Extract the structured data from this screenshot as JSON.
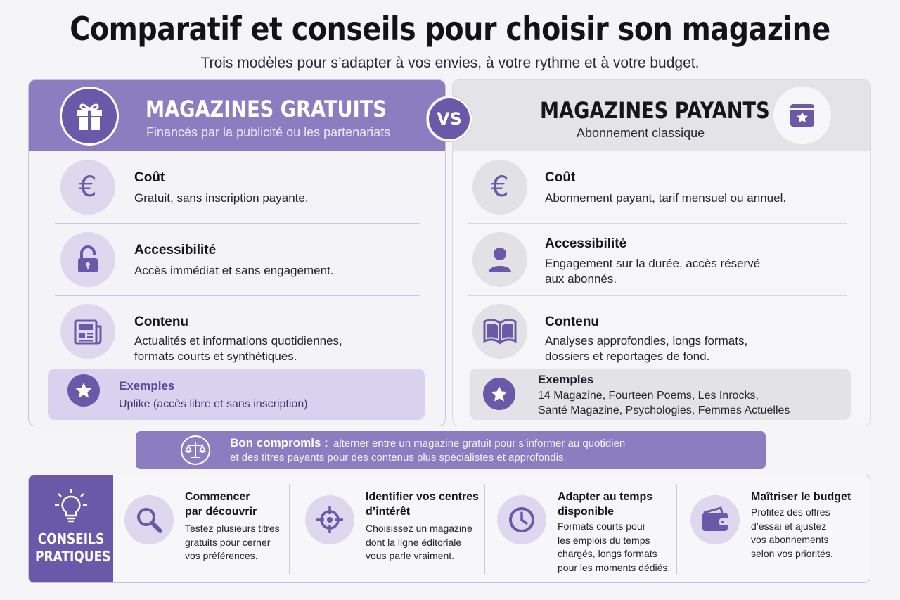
{
  "header": {
    "title": "Comparatif et conseils pour choisir son magazine",
    "subtitle": "Trois modèles pour s’adapter à vos envies, à votre rythme et à votre budget."
  },
  "vs_label": "VS",
  "free": {
    "title": "MAGAZINES GRATUITS",
    "subtitle": "Financés par la publicité ou les partenariats",
    "icon": "gift-icon",
    "rows": [
      {
        "title": "Coût",
        "desc": [
          "Gratuit, sans inscription payante."
        ],
        "icon": "euro-icon"
      },
      {
        "title": "Accessibilité",
        "desc": [
          "Accès immédiat et sans engagement."
        ],
        "icon": "unlocked-padlock-icon"
      },
      {
        "title": "Contenu",
        "desc": [
          "Actualités et informations quotidiennes,",
          "formats courts et synthétiques."
        ],
        "icon": "newspaper-icon"
      }
    ],
    "examples": {
      "title": "Exemples",
      "lines": [
        "Uplike (accès libre et sans inscription)"
      ]
    }
  },
  "paid": {
    "title": "MAGAZINES PAYANTS",
    "subtitle": "Abonnement classique",
    "icon": "star-card-icon",
    "rows": [
      {
        "title": "Coût",
        "desc": [
          "Abonnement payant, tarif mensuel ou annuel."
        ],
        "icon": "euro-icon"
      },
      {
        "title": "Accessibilité",
        "desc": [
          "Engagement sur la durée, accès réservé",
          "aux abonnés."
        ],
        "icon": "user-icon"
      },
      {
        "title": "Contenu",
        "desc": [
          "Analyses approfondies, longs formats,",
          "dossiers et reportages de fond."
        ],
        "icon": "open-book-icon"
      }
    ],
    "examples": {
      "title": "Exemples",
      "lines": [
        "14 Magazine, Fourteen Poems, Les Inrocks,",
        "Santé Magazine, Psychologies, Femmes Actuelles"
      ]
    }
  },
  "compromise": {
    "label": "Bon compromis :",
    "line1": "alterner entre un magazine gratuit pour s’informer au quotidien",
    "line2": "et des titres payants pour des contenus plus spécialistes et approfondis.",
    "icon": "balance-scale-icon"
  },
  "tips": {
    "title": [
      "CONSEILS",
      "PRATIQUES"
    ],
    "icon": "lightbulb-icon",
    "items": [
      {
        "title": [
          "Commencer",
          "par découvrir"
        ],
        "desc": [
          "Testez plusieurs titres",
          "gratuits pour cerner",
          "vos préférences."
        ],
        "icon": "magnifier-icon"
      },
      {
        "title": [
          "Identifier vos centres",
          "d’intérêt"
        ],
        "desc": [
          "Choisissez un magazine",
          "dont la ligne éditoriale",
          "vous parle vraiment."
        ],
        "icon": "target-icon"
      },
      {
        "title": [
          "Adapter au temps",
          "disponible"
        ],
        "desc": [
          "Formats courts pour",
          "les emplois du temps",
          "chargés, longs formats",
          "pour les moments dédiés."
        ],
        "icon": "clock-icon"
      },
      {
        "title": [
          "Maîtriser le budget"
        ],
        "desc": [
          "Profitez des offres",
          "d’essai et ajustez",
          "vos abonnements",
          "selon vos priorités."
        ],
        "icon": "wallet-icon"
      }
    ]
  },
  "colors": {
    "primary": "#6a58a8",
    "light": "#8c7cc0",
    "soft": "#ddd8ee",
    "grey": "#e4e4e8"
  }
}
